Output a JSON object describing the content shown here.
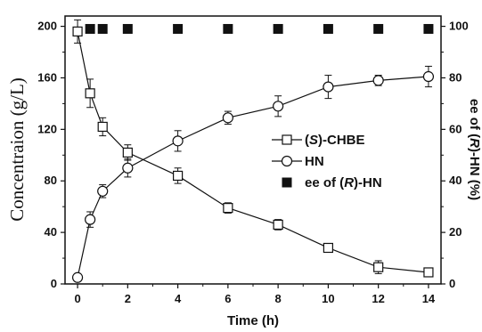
{
  "chart_data": {
    "type": "line",
    "xlabel": "Time (h)",
    "ylabel_left": "Concentraion (g/L)",
    "ylabel_right": "ee of (R)-HN (%)",
    "xlim": [
      -0.5,
      14.5
    ],
    "ylim_left": [
      0,
      208
    ],
    "ylim_right": [
      0,
      104
    ],
    "x_ticks": [
      "0",
      "2",
      "4",
      "6",
      "8",
      "10",
      "12",
      "14"
    ],
    "y_ticks_left": [
      "0",
      "40",
      "80",
      "120",
      "160",
      "200"
    ],
    "y_ticks_right": [
      "0",
      "20",
      "40",
      "60",
      "80",
      "100"
    ],
    "grid": false,
    "legend_position": "center-right",
    "series": [
      {
        "name": "(S)-CHBE",
        "axis": "left",
        "marker": "square-open",
        "line": true,
        "x": [
          0,
          0.5,
          1,
          2,
          4,
          6,
          8,
          10,
          12,
          14
        ],
        "y": [
          196,
          148,
          122,
          102,
          84,
          59,
          46,
          28,
          13,
          9
        ],
        "yerr": [
          9,
          11,
          7,
          6,
          6,
          4,
          4,
          2,
          5,
          2
        ]
      },
      {
        "name": "HN",
        "axis": "left",
        "marker": "circle-open",
        "line": true,
        "x": [
          0,
          0.5,
          1,
          2,
          4,
          6,
          8,
          10,
          12,
          14
        ],
        "y": [
          5,
          50,
          72,
          90,
          111,
          129,
          138,
          153,
          158,
          161
        ],
        "yerr": [
          1,
          6,
          5,
          7,
          8,
          5,
          8,
          9,
          4,
          8
        ]
      },
      {
        "name": "ee of (R)-HN",
        "axis": "right",
        "marker": "square-filled",
        "line": false,
        "x": [
          0.5,
          1,
          2,
          4,
          6,
          8,
          10,
          12,
          14
        ],
        "y": [
          99,
          99,
          99,
          99,
          99,
          99,
          99,
          99,
          99
        ],
        "yerr": []
      }
    ]
  }
}
